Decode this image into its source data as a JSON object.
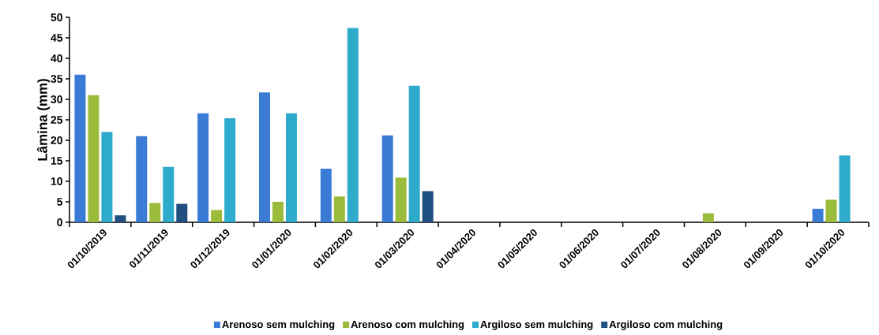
{
  "chart_data": {
    "type": "bar",
    "ylabel": "Lâmina (mm)",
    "categories": [
      "01/10/2019",
      "01/11/2019",
      "01/12/2019",
      "01/01/2020",
      "01/02/2020",
      "01/03/2020",
      "01/04/2020",
      "01/05/2020",
      "01/06/2020",
      "01/07/2020",
      "01/08/2020",
      "01/09/2020",
      "01/10/2020"
    ],
    "series": [
      {
        "name": "Arenoso sem mulching",
        "color": "#3a7bd5",
        "values": [
          36,
          21,
          26.6,
          31.7,
          13.1,
          21.2,
          0,
          0,
          0,
          0,
          0,
          0,
          3.3
        ]
      },
      {
        "name": "Arenoso com mulching",
        "color": "#9bbb3b",
        "values": [
          31,
          4.7,
          3,
          5,
          6.3,
          10.9,
          0,
          0,
          0,
          0,
          2.2,
          0,
          5.5
        ]
      },
      {
        "name": "Argiloso sem mulching",
        "color": "#2eaacb",
        "values": [
          22,
          13.5,
          25.4,
          26.6,
          47.4,
          33.3,
          0,
          0,
          0,
          0,
          0,
          0,
          16.3
        ]
      },
      {
        "name": "Argiloso com mulching",
        "color": "#1f4e80",
        "values": [
          1.7,
          4.5,
          0,
          0,
          0,
          7.6,
          0,
          0,
          0,
          0,
          0,
          0,
          0
        ]
      }
    ],
    "ylim": [
      0,
      50
    ],
    "yticks": [
      0,
      5,
      10,
      15,
      20,
      25,
      30,
      35,
      40,
      45,
      50
    ],
    "grid": false,
    "legend": "bottom"
  }
}
